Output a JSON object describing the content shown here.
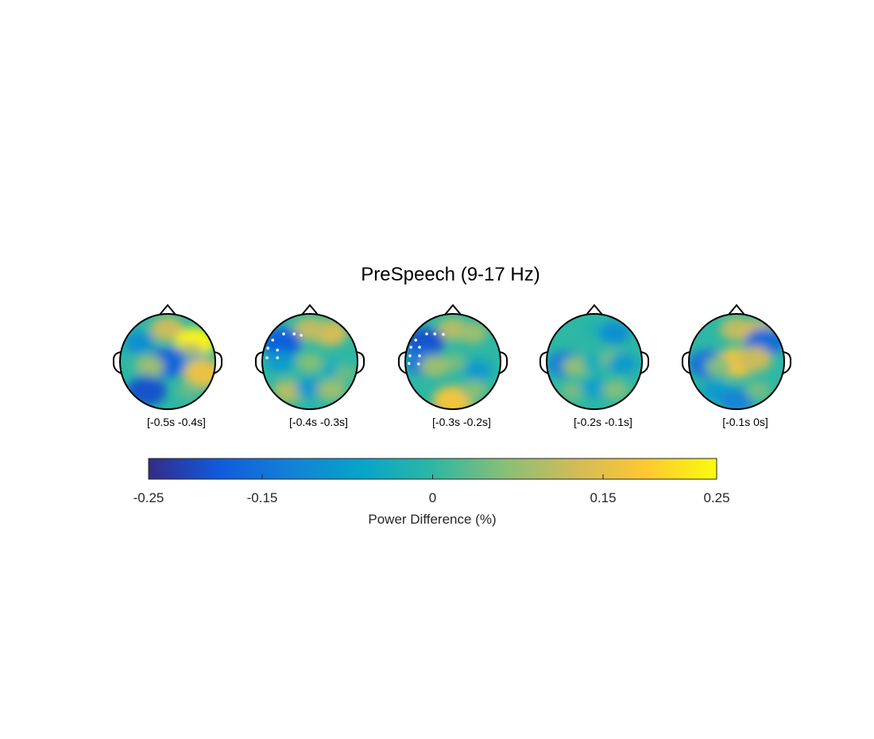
{
  "chart_data": {
    "type": "heatmap",
    "subtype": "eeg-topoplot-series",
    "title": "PreSpeech (9-17 Hz)",
    "panels": [
      {
        "label": "[-0.5s -0.4s]",
        "significant_electrodes": 0,
        "features": [
          {
            "region": "front-center",
            "value": 0.12
          },
          {
            "region": "right-front",
            "value": 0.24
          },
          {
            "region": "right-front-band",
            "value": 0.1
          },
          {
            "region": "left-front",
            "value": -0.1
          },
          {
            "region": "center",
            "value": -0.17
          },
          {
            "region": "center-left",
            "value": 0.08
          },
          {
            "region": "right",
            "value": -0.06
          },
          {
            "region": "right-edge",
            "value": 0.16
          },
          {
            "region": "left-back",
            "value": -0.02
          },
          {
            "region": "back-left",
            "value": -0.2
          },
          {
            "region": "back-right",
            "value": 0.04
          }
        ]
      },
      {
        "label": "[-0.4s -0.3s]",
        "significant_electrodes": 8,
        "features": [
          {
            "region": "front-right",
            "value": 0.13
          },
          {
            "region": "front-center",
            "value": 0.11
          },
          {
            "region": "left-front",
            "value": -0.18
          },
          {
            "region": "left-mid",
            "value": -0.08
          },
          {
            "region": "center",
            "value": 0.06
          },
          {
            "region": "right-mid",
            "value": -0.05
          },
          {
            "region": "back-left",
            "value": 0.1
          },
          {
            "region": "back-center",
            "value": -0.08
          },
          {
            "region": "back-right",
            "value": 0.08
          },
          {
            "region": "right-edge",
            "value": 0.04
          }
        ]
      },
      {
        "label": "[-0.3s -0.2s]",
        "significant_electrodes": 10,
        "features": [
          {
            "region": "front-center",
            "value": 0.1
          },
          {
            "region": "front-right",
            "value": 0.08
          },
          {
            "region": "left-front",
            "value": -0.2
          },
          {
            "region": "left-mid",
            "value": -0.14
          },
          {
            "region": "center",
            "value": 0.05
          },
          {
            "region": "right-mid",
            "value": -0.08
          },
          {
            "region": "center-left",
            "value": 0.08
          },
          {
            "region": "back",
            "value": 0.17
          },
          {
            "region": "back-right",
            "value": 0.06
          }
        ]
      },
      {
        "label": "[-0.2s -0.1s]",
        "significant_electrodes": 0,
        "features": [
          {
            "region": "front-center",
            "value": -0.02
          },
          {
            "region": "front-right",
            "value": -0.1
          },
          {
            "region": "left",
            "value": -0.13
          },
          {
            "region": "center-left",
            "value": 0.07
          },
          {
            "region": "center",
            "value": -0.04
          },
          {
            "region": "center-right",
            "value": 0.05
          },
          {
            "region": "right",
            "value": -0.08
          },
          {
            "region": "back-left",
            "value": 0.05
          },
          {
            "region": "back-center",
            "value": -0.07
          },
          {
            "region": "back-right",
            "value": 0.06
          }
        ]
      },
      {
        "label": "[-0.1s 0s]",
        "significant_electrodes": 0,
        "features": [
          {
            "region": "front-center",
            "value": 0.11
          },
          {
            "region": "front-right",
            "value": 0.13
          },
          {
            "region": "right-front",
            "value": -0.16
          },
          {
            "region": "left",
            "value": -0.15
          },
          {
            "region": "center",
            "value": 0.17
          },
          {
            "region": "center-right",
            "value": 0.12
          },
          {
            "region": "center-left",
            "value": 0.06
          },
          {
            "region": "back-left",
            "value": -0.08
          },
          {
            "region": "back",
            "value": -0.12
          },
          {
            "region": "back-right",
            "value": 0.05
          }
        ]
      }
    ],
    "colorbar": {
      "label": "Power Difference (%)",
      "clim": [
        -0.25,
        0.25
      ],
      "ticks": [
        -0.25,
        -0.15,
        0,
        0.15,
        0.25
      ],
      "tick_labels": [
        "-0.25",
        "-0.15",
        "0",
        "0.15",
        "0.25"
      ],
      "colormap": "parula",
      "colormap_stops": [
        "#352a87",
        "#0f5cdd",
        "#1481d6",
        "#06a4ca",
        "#2eb7a4",
        "#87bf77",
        "#d1bb59",
        "#fec832",
        "#f9fb0e"
      ]
    },
    "colors": {
      "significant_marker": "#ffffff",
      "head_outline": "#000000"
    }
  }
}
